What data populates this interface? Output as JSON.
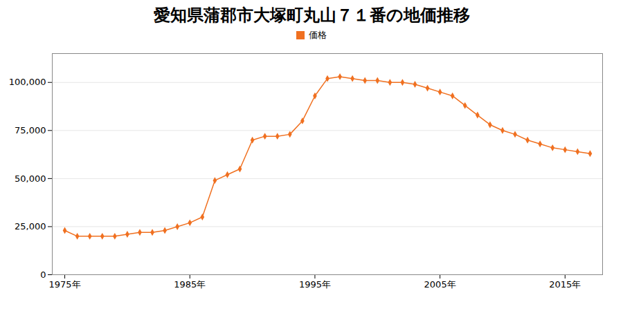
{
  "chart_data": {
    "type": "line",
    "title": "愛知県蒲郡市大塚町丸山７１番の地価推移",
    "x": [
      1975,
      1976,
      1977,
      1978,
      1979,
      1980,
      1981,
      1982,
      1983,
      1984,
      1985,
      1986,
      1987,
      1988,
      1989,
      1990,
      1991,
      1992,
      1993,
      1994,
      1995,
      1996,
      1997,
      1998,
      1999,
      2000,
      2001,
      2002,
      2003,
      2004,
      2005,
      2006,
      2007,
      2008,
      2009,
      2010,
      2011,
      2012,
      2013,
      2014,
      2015,
      2016,
      2017
    ],
    "series": [
      {
        "name": "価格",
        "color": "#f07020",
        "marker": "diamond",
        "values": [
          23000,
          20000,
          20000,
          20000,
          20000,
          21000,
          22000,
          22000,
          23000,
          25000,
          27000,
          30000,
          49000,
          52000,
          55000,
          70000,
          72000,
          72000,
          73000,
          80000,
          93000,
          102000,
          103000,
          102000,
          101000,
          101000,
          100000,
          100000,
          99000,
          97000,
          95000,
          93000,
          88000,
          83000,
          78000,
          75000,
          73000,
          70000,
          68000,
          66000,
          65000,
          64000,
          63000
        ]
      }
    ],
    "xlim": [
      1974,
      2018
    ],
    "xticks": [
      {
        "value": 1975,
        "label": "1975年"
      },
      {
        "value": 1985,
        "label": "1985年"
      },
      {
        "value": 1995,
        "label": "1995年"
      },
      {
        "value": 2005,
        "label": "2005年"
      },
      {
        "value": 2015,
        "label": "2015年"
      }
    ],
    "ylim": [
      0,
      115000
    ],
    "yticks": [
      0,
      {
        "value": 25000,
        "label": "25,000"
      },
      {
        "value": 50000,
        "label": "50,000"
      },
      {
        "value": 75000,
        "label": "75,000"
      },
      {
        "value": 100000,
        "label": "100,000"
      }
    ],
    "grid": true,
    "legend": "top"
  }
}
